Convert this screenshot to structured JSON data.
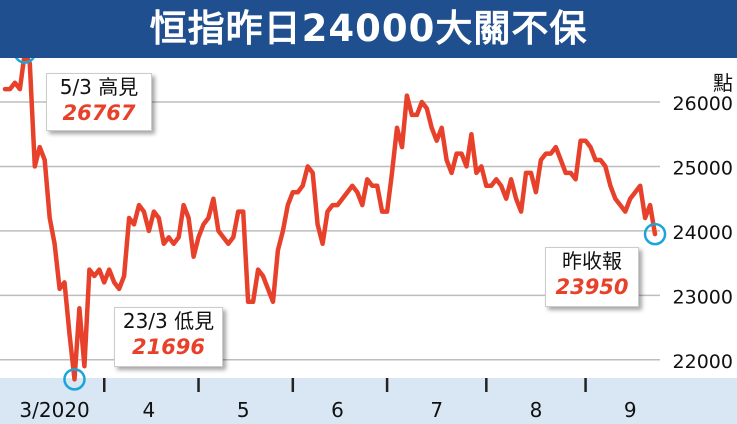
{
  "title": "恒指昨日24000大關不保",
  "colors": {
    "title_bg": "#1f4f8e",
    "line": "#e8412b",
    "marker": "#1aa6d8",
    "xaxis_bg": "#d8e7f3",
    "grid": "#bdbdbd"
  },
  "chart_data": {
    "type": "line",
    "title": "恒指昨日24000大關不保",
    "ylabel": "點",
    "ylim": [
      21500,
      26900
    ],
    "yticks": [
      22000,
      23000,
      24000,
      25000,
      26000
    ],
    "xlim": [
      0,
      132
    ],
    "x_tick_labels": [
      {
        "label": "3/2020",
        "x": 10
      },
      {
        "label": "4",
        "x": 29
      },
      {
        "label": "5",
        "x": 48
      },
      {
        "label": "6",
        "x": 67
      },
      {
        "label": "7",
        "x": 87
      },
      {
        "label": "8",
        "x": 107
      },
      {
        "label": "9",
        "x": 126
      }
    ],
    "month_boundaries": [
      20,
      39,
      58,
      77,
      97,
      117
    ],
    "grid": true,
    "series": [
      {
        "values": [
          26200,
          26200,
          26300,
          26200,
          26767,
          26600,
          25000,
          25300,
          25100,
          24200,
          23800,
          23100,
          23200,
          22400,
          21696,
          22800,
          21900,
          23400,
          23300,
          23400,
          23200,
          23400,
          23200,
          23100,
          23300,
          24200,
          24100,
          24400,
          24300,
          24000,
          24300,
          24200,
          23800,
          23900,
          23800,
          23900,
          24400,
          24200,
          23600,
          23900,
          24100,
          24200,
          24500,
          24000,
          23900,
          23800,
          23900,
          24300,
          24300,
          22900,
          22900,
          23400,
          23300,
          23100,
          22900,
          23700,
          24000,
          24400,
          24600,
          24600,
          24700,
          25000,
          24900,
          24100,
          23800,
          24300,
          24400,
          24400,
          24500,
          24600,
          24700,
          24600,
          24400,
          24800,
          24700,
          24700,
          24300,
          24300,
          24900,
          25600,
          25300,
          26100,
          25800,
          25800,
          26000,
          25900,
          25600,
          25400,
          25600,
          25100,
          24900,
          25200,
          25200,
          25000,
          25500,
          24900,
          25000,
          24700,
          24700,
          24800,
          24700,
          24500,
          24800,
          24500,
          24300,
          24900,
          24900,
          24600,
          25100,
          25200,
          25200,
          25300,
          25100,
          24900,
          24900,
          24800,
          25400,
          25400,
          25300,
          25100,
          25100,
          25000,
          24700,
          24500,
          24400,
          24300,
          24500,
          24600,
          24700,
          24200,
          24400,
          23950
        ]
      }
    ],
    "annotations": [
      {
        "label": "5/3 高見",
        "value": "26767",
        "index": 4
      },
      {
        "label": "23/3 低見",
        "value": "21696",
        "index": 14
      },
      {
        "label": "昨收報",
        "value": "23950",
        "index": 131
      }
    ]
  }
}
